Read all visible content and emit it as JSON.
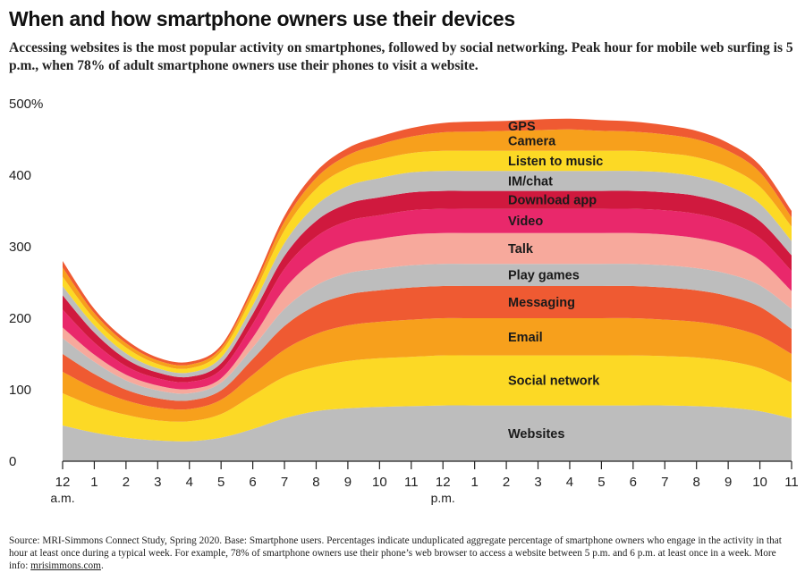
{
  "title": "When and how smartphone owners use their devices",
  "subtitle": "Accessing websites is the most popular activity on smartphones, followed by social networking. Peak hour for mobile web surfing is 5 p.m., when 78% of adult smartphone owners use their phones to visit a website.",
  "footnote": {
    "text": "Source: MRI-Simmons Connect Study, Spring 2020. Base: Smartphone users. Percentages indicate unduplicated aggregate percentage of smartphone owners who engage in the activity in that hour at least once during a typical week. For example, 78% of smartphone owners use their phone’s web browser to access a website between 5 p.m. and 6 p.m. at least once in a week. More info: ",
    "link": "mrisimmons.com",
    "end": "."
  },
  "chart_data": {
    "type": "area",
    "stacked": true,
    "x": [
      "12",
      "1",
      "2",
      "3",
      "4",
      "5",
      "6",
      "7",
      "8",
      "9",
      "10",
      "11",
      "12",
      "1",
      "2",
      "3",
      "4",
      "5",
      "6",
      "7",
      "8",
      "9",
      "10",
      "11"
    ],
    "x_sublabels": [
      {
        "index": 0,
        "text": "a.m."
      },
      {
        "index": 12,
        "text": "p.m."
      }
    ],
    "y_ticks": [
      "0",
      "100",
      "200",
      "300",
      "400",
      "500%"
    ],
    "y_tick_values": [
      0,
      100,
      200,
      300,
      400,
      500
    ],
    "ylim": [
      0,
      520
    ],
    "grid": false,
    "series": [
      {
        "name": "Websites",
        "color": "#bdbdbd",
        "values": [
          50,
          40,
          33,
          29,
          28,
          33,
          45,
          60,
          70,
          74,
          76,
          77,
          78,
          78,
          78,
          78,
          78,
          78,
          78,
          78,
          77,
          75,
          70,
          60
        ]
      },
      {
        "name": "Social network",
        "color": "#fcd925",
        "values": [
          45,
          37,
          32,
          28,
          28,
          33,
          47,
          58,
          62,
          66,
          68,
          69,
          70,
          70,
          70,
          70,
          70,
          70,
          70,
          69,
          68,
          65,
          60,
          50
        ]
      },
      {
        "name": "Email",
        "color": "#f7a01c",
        "values": [
          30,
          25,
          20,
          18,
          17,
          20,
          29,
          38,
          46,
          50,
          51,
          52,
          52,
          52,
          52,
          52,
          52,
          52,
          52,
          51,
          50,
          48,
          45,
          40
        ]
      },
      {
        "name": "Messaging",
        "color": "#ef5a32",
        "values": [
          25,
          20,
          15,
          13,
          12,
          13,
          22,
          33,
          40,
          43,
          44,
          45,
          45,
          45,
          45,
          45,
          45,
          45,
          45,
          45,
          44,
          43,
          41,
          35
        ]
      },
      {
        "name": "Play games",
        "color": "#bdbdbd",
        "values": [
          22,
          17,
          13,
          11,
          10,
          11,
          16,
          24,
          28,
          30,
          30,
          31,
          31,
          31,
          31,
          31,
          31,
          31,
          31,
          31,
          31,
          31,
          30,
          28
        ]
      },
      {
        "name": "Talk",
        "color": "#f7a99c",
        "values": [
          15,
          10,
          8,
          7,
          6,
          6,
          14,
          28,
          36,
          40,
          42,
          43,
          43,
          43,
          43,
          43,
          43,
          43,
          43,
          43,
          42,
          40,
          35,
          25
        ]
      },
      {
        "name": "Video",
        "color": "#e9286b",
        "values": [
          25,
          17,
          12,
          10,
          10,
          12,
          19,
          28,
          32,
          33,
          33,
          34,
          34,
          34,
          34,
          34,
          34,
          34,
          34,
          34,
          34,
          33,
          31,
          28
        ]
      },
      {
        "name": "Download app",
        "color": "#d0193e",
        "values": [
          20,
          14,
          10,
          8,
          7,
          9,
          14,
          18,
          22,
          24,
          25,
          25,
          25,
          25,
          25,
          25,
          25,
          25,
          25,
          25,
          25,
          24,
          24,
          22
        ]
      },
      {
        "name": "IM/chat",
        "color": "#bdbdbd",
        "values": [
          13,
          10,
          8,
          6,
          6,
          8,
          12,
          18,
          22,
          25,
          27,
          28,
          28,
          28,
          28,
          28,
          28,
          28,
          28,
          28,
          27,
          26,
          24,
          20
        ]
      },
      {
        "name": "Listen to music",
        "color": "#fcd925",
        "values": [
          13,
          9,
          8,
          6,
          6,
          8,
          13,
          18,
          23,
          25,
          26,
          27,
          28,
          28,
          28,
          28,
          28,
          28,
          28,
          27,
          27,
          26,
          24,
          20
        ]
      },
      {
        "name": "Camera",
        "color": "#f7a01c",
        "values": [
          13,
          8,
          6,
          5,
          5,
          5,
          8,
          12,
          15,
          18,
          21,
          23,
          26,
          27,
          28,
          29,
          30,
          28,
          27,
          26,
          25,
          23,
          20,
          13
        ]
      },
      {
        "name": "GPS",
        "color": "#ef5a32",
        "values": [
          9,
          6,
          5,
          4,
          4,
          4,
          6,
          8,
          9,
          10,
          11,
          12,
          13,
          14,
          14,
          15,
          15,
          15,
          14,
          13,
          12,
          11,
          10,
          9
        ]
      }
    ]
  }
}
